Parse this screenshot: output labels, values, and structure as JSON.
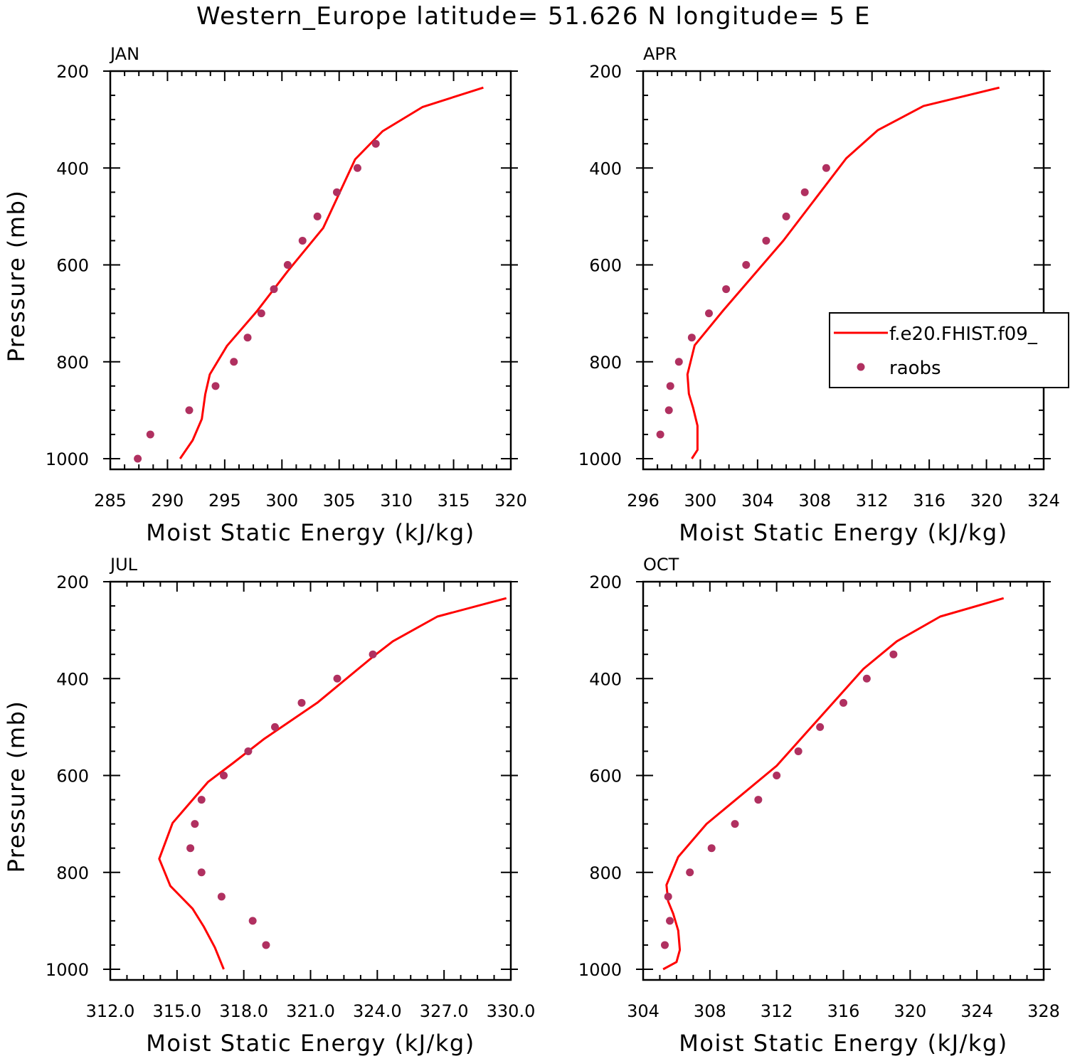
{
  "title": "Western_Europe  latitude= 51.626 N longitude= 5 E",
  "colors": {
    "model": "#ff0000",
    "obs": "#b03060",
    "frame": "#000000"
  },
  "legend": {
    "model_label": "f.e20.FHIST.f09_",
    "obs_label": "raobs"
  },
  "chart_data": [
    {
      "type": "line",
      "panel": "JAN",
      "title": "JAN",
      "xlabel": "Moist Static Energy (kJ/kg)",
      "ylabel": "Pressure (mb)",
      "xlim": [
        285,
        320
      ],
      "ylim": [
        1000,
        200
      ],
      "x_ticks": [
        285,
        290,
        295,
        300,
        305,
        310,
        315,
        320
      ],
      "x_tick_labels": [
        "285",
        "290",
        "295",
        "300",
        "305",
        "310",
        "315",
        "320"
      ],
      "y_ticks": [
        200,
        400,
        600,
        800,
        1000
      ],
      "y_tick_labels": [
        "200",
        "400",
        "600",
        "800",
        "1000"
      ],
      "series": [
        {
          "name": "f.e20.FHIST.f09_",
          "kind": "line",
          "x": [
            291.1,
            292.2,
            293.0,
            293.3,
            293.7,
            295.2,
            297.8,
            300.5,
            303.6,
            306.4,
            308.8,
            312.3,
            317.6
          ],
          "y": [
            1000,
            962,
            918,
            867,
            826,
            767,
            696,
            613,
            524,
            382,
            324,
            274,
            234
          ]
        },
        {
          "name": "raobs",
          "kind": "scatter",
          "x": [
            287.4,
            288.5,
            291.9,
            294.2,
            295.8,
            297.0,
            298.2,
            299.3,
            300.5,
            301.8,
            303.1,
            304.8,
            306.6,
            308.2
          ],
          "y": [
            1000,
            950,
            900,
            850,
            800,
            750,
            700,
            650,
            600,
            550,
            500,
            450,
            400,
            350
          ]
        }
      ],
      "legend_visible": false
    },
    {
      "type": "line",
      "panel": "APR",
      "title": "APR",
      "xlabel": "Moist Static Energy (kJ/kg)",
      "ylabel": "",
      "xlim": [
        296,
        324
      ],
      "ylim": [
        1000,
        200
      ],
      "x_ticks": [
        296,
        300,
        304,
        308,
        312,
        316,
        320,
        324
      ],
      "x_tick_labels": [
        "296",
        "300",
        "304",
        "308",
        "312",
        "316",
        "320",
        "324"
      ],
      "y_ticks": [
        200,
        400,
        600,
        800,
        1000
      ],
      "y_tick_labels": [
        "200",
        "400",
        "600",
        "800",
        "1000"
      ],
      "series": [
        {
          "name": "f.e20.FHIST.f09_",
          "kind": "line",
          "x": [
            299.4,
            299.8,
            299.8,
            299.5,
            299.2,
            299.1,
            299.6,
            301.6,
            305.8,
            310.2,
            312.4,
            315.6,
            320.9
          ],
          "y": [
            1000,
            982,
            932,
            896,
            866,
            826,
            766,
            694,
            550,
            380,
            322,
            272,
            234
          ]
        },
        {
          "name": "raobs",
          "kind": "scatter",
          "x": [
            297.2,
            297.8,
            297.9,
            298.5,
            299.4,
            300.6,
            301.8,
            303.2,
            304.6,
            306.0,
            307.3,
            308.8
          ],
          "y": [
            950,
            900,
            850,
            800,
            750,
            700,
            650,
            600,
            550,
            500,
            450,
            400
          ]
        }
      ],
      "legend_visible": true,
      "legend_position": "right"
    },
    {
      "type": "line",
      "panel": "JUL",
      "title": "JUL",
      "xlabel": "Moist Static Energy (kJ/kg)",
      "ylabel": "Pressure (mb)",
      "xlim": [
        312.0,
        330.0
      ],
      "ylim": [
        1000,
        200
      ],
      "x_ticks": [
        312,
        315,
        318,
        321,
        324,
        327,
        330
      ],
      "x_tick_labels": [
        "312.0",
        "315.0",
        "318.0",
        "321.0",
        "324.0",
        "327.0",
        "330.0"
      ],
      "y_ticks": [
        200,
        400,
        600,
        800,
        1000
      ],
      "y_tick_labels": [
        "200",
        "400",
        "600",
        "800",
        "1000"
      ],
      "series": [
        {
          "name": "f.e20.FHIST.f09_",
          "kind": "line",
          "x": [
            317.1,
            316.7,
            316.2,
            315.7,
            314.7,
            314.2,
            314.8,
            316.4,
            317.5,
            318.9,
            321.3,
            323.8,
            324.7,
            326.7,
            329.8
          ],
          "y": [
            1000,
            955,
            912,
            875,
            828,
            772,
            698,
            613,
            575,
            525,
            450,
            355,
            323,
            272,
            234
          ]
        },
        {
          "name": "raobs",
          "kind": "scatter",
          "x": [
            319.0,
            318.4,
            317.0,
            316.1,
            315.6,
            315.8,
            316.1,
            317.1,
            318.2,
            319.4,
            320.6,
            322.2,
            323.8
          ],
          "y": [
            950,
            900,
            850,
            800,
            750,
            700,
            650,
            600,
            550,
            500,
            450,
            400,
            350
          ]
        }
      ],
      "legend_visible": false
    },
    {
      "type": "line",
      "panel": "OCT",
      "title": "OCT",
      "xlabel": "Moist Static Energy (kJ/kg)",
      "ylabel": "",
      "xlim": [
        304,
        328
      ],
      "ylim": [
        1000,
        200
      ],
      "x_ticks": [
        304,
        308,
        312,
        316,
        320,
        324,
        328
      ],
      "x_tick_labels": [
        "304",
        "308",
        "312",
        "316",
        "320",
        "324",
        "328"
      ],
      "y_ticks": [
        200,
        400,
        600,
        800,
        1000
      ],
      "y_tick_labels": [
        "200",
        "400",
        "600",
        "800",
        "1000"
      ],
      "series": [
        {
          "name": "f.e20.FHIST.f09_",
          "kind": "line",
          "x": [
            305.2,
            306.0,
            306.2,
            306.1,
            305.8,
            305.5,
            305.4,
            306.1,
            307.8,
            312.0,
            317.2,
            319.2,
            321.8,
            325.6
          ],
          "y": [
            1000,
            985,
            960,
            920,
            885,
            860,
            826,
            768,
            700,
            580,
            380,
            323,
            272,
            234
          ]
        },
        {
          "name": "raobs",
          "kind": "scatter",
          "x": [
            305.3,
            305.6,
            305.5,
            306.8,
            308.1,
            309.5,
            310.9,
            312.0,
            313.3,
            314.6,
            316.0,
            317.4,
            319.0
          ],
          "y": [
            950,
            900,
            850,
            800,
            750,
            700,
            650,
            600,
            550,
            500,
            450,
            400,
            350
          ]
        }
      ],
      "legend_visible": false
    }
  ]
}
